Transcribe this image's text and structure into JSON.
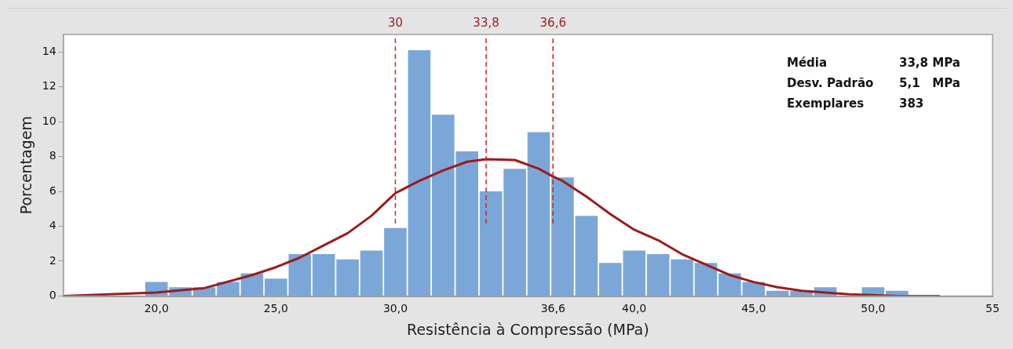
{
  "chart_data": {
    "type": "histogram",
    "xlabel": "Resistência à Compressão (MPa)",
    "ylabel": "Porcentagem",
    "bins": [
      19.5,
      20.5,
      21.5,
      22.5,
      23.5,
      24.5,
      25.5,
      26.5,
      27.5,
      28.5,
      29.5,
      30.5,
      31.5,
      32.5,
      33.5,
      34.5,
      35.5,
      36.5,
      37.5,
      38.5,
      39.5,
      40.5,
      41.5,
      42.5,
      43.5,
      44.5,
      45.5,
      46.5,
      47.5,
      48.5,
      49.5,
      50.5,
      51.5
    ],
    "values": [
      0.8,
      0.5,
      0.5,
      0.8,
      1.3,
      1.0,
      2.4,
      2.4,
      2.1,
      2.6,
      3.9,
      14.1,
      10.4,
      8.3,
      6.0,
      7.3,
      9.4,
      6.8,
      4.6,
      1.9,
      2.6,
      2.4,
      2.1,
      1.9,
      1.3,
      0.8,
      0.3,
      0.3,
      0.5,
      0,
      0.5,
      0.3
    ],
    "color": "#7ba7d8",
    "series": [
      {
        "type": "line",
        "color": "#9b1c1c",
        "x": [
          16.1,
          18,
          20,
          22,
          24,
          25,
          26,
          27,
          28,
          29,
          30,
          31,
          32,
          33,
          33.8,
          35,
          36,
          36.6,
          37,
          38,
          39,
          40,
          41,
          42,
          43,
          44,
          45,
          46,
          47,
          48,
          49,
          50,
          51,
          52.8
        ],
        "values": [
          0,
          0.1,
          0.2,
          0.45,
          1.2,
          1.65,
          2.2,
          2.9,
          3.6,
          4.6,
          5.9,
          6.6,
          7.2,
          7.7,
          7.85,
          7.8,
          7.3,
          6.85,
          6.6,
          5.7,
          4.7,
          3.8,
          3.2,
          2.4,
          1.8,
          1.2,
          0.8,
          0.5,
          0.3,
          0.2,
          0.1,
          0.05,
          0,
          0
        ]
      }
    ],
    "xlim": [
      16.1,
      55
    ],
    "ylim": [
      0,
      15
    ],
    "xticks": [
      {
        "value": 20,
        "label": "20,0"
      },
      {
        "value": 25,
        "label": "25,0"
      },
      {
        "value": 30,
        "label": "30,0"
      },
      {
        "value": 36.6,
        "label": "36,6"
      },
      {
        "value": 40,
        "label": "40,0"
      },
      {
        "value": 45,
        "label": "45,0"
      },
      {
        "value": 50,
        "label": "50,0"
      },
      55
    ],
    "yticks": [
      0,
      2,
      4,
      6,
      8,
      10,
      12,
      14
    ],
    "grid": false,
    "legend": false,
    "ref_lines": [
      {
        "axis": "x",
        "value": 30,
        "label": "30",
        "color": "#d42020",
        "line_style": "dashed"
      },
      {
        "axis": "x",
        "value": 33.8,
        "label": "33,8",
        "color": "#d42020",
        "line_style": "dashed"
      },
      {
        "axis": "x",
        "value": 36.6,
        "label": "36,6",
        "color": "#d42020",
        "line_style": "dashed"
      }
    ],
    "annotations": [
      "Média",
      "33,8 MPa",
      "Desv. Padrão",
      "5,1   MPa",
      "Exemplares",
      "383"
    ]
  }
}
